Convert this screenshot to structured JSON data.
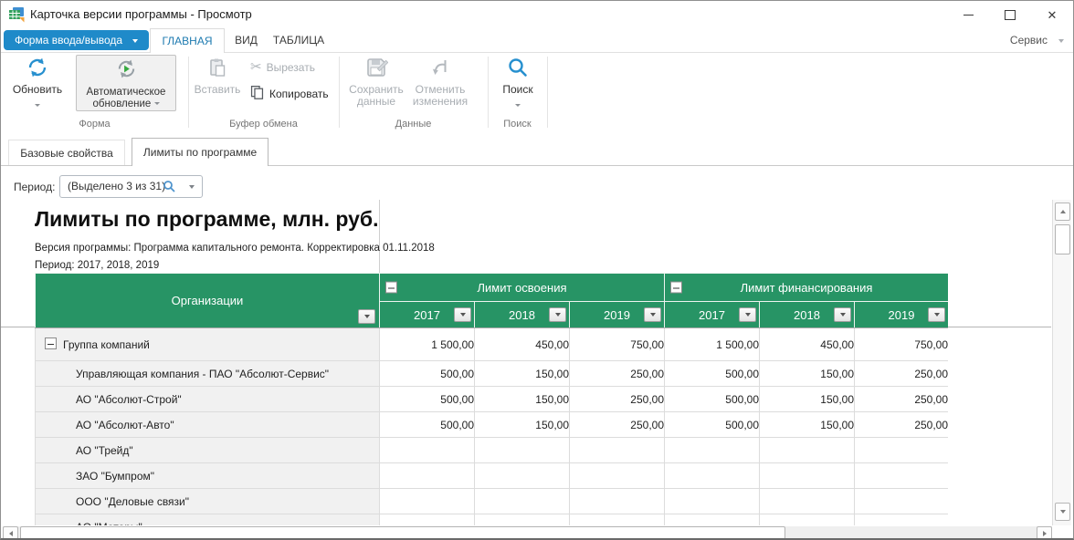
{
  "window": {
    "title": "Карточка версии программы - Просмотр"
  },
  "menu": {
    "form_button": "Форма ввода/вывода",
    "tabs": [
      "ГЛАВНАЯ",
      "ВИД",
      "ТАБЛИЦА"
    ],
    "active_tab": "ГЛАВНАЯ",
    "service": "Сервис"
  },
  "ribbon": {
    "groups": [
      {
        "label": "Форма",
        "items": [
          {
            "label": "Обновить",
            "enabled": true
          },
          {
            "label": "Автоматическое обновление",
            "enabled": true
          }
        ]
      },
      {
        "label": "Буфер обмена",
        "items": [
          {
            "label": "Вставить",
            "enabled": false
          },
          {
            "label": "Вырезать",
            "enabled": false
          },
          {
            "label": "Копировать",
            "enabled": true
          }
        ]
      },
      {
        "label": "Данные",
        "items": [
          {
            "label": "Сохранить данные",
            "enabled": false
          },
          {
            "label": "Отменить изменения",
            "enabled": false
          }
        ]
      },
      {
        "label": "Поиск",
        "items": [
          {
            "label": "Поиск",
            "enabled": true
          }
        ]
      }
    ]
  },
  "page_tabs": [
    "Базовые свойства",
    "Лимиты по программе"
  ],
  "active_page_tab": "Лимиты по программе",
  "period_selector": {
    "label": "Период:",
    "value": "(Выделено 3 из 31)"
  },
  "report": {
    "title": "Лимиты по программе, млн. руб.",
    "version_line": "Версия программы: Программа капитального ремонта. Корректировка 01.11.2018",
    "period_line": "Период: 2017, 2018, 2019"
  },
  "table": {
    "org_header": "Организации",
    "group_headers": [
      "Лимит освоения",
      "Лимит финансирования"
    ],
    "years": [
      "2017",
      "2018",
      "2019"
    ],
    "rows": [
      {
        "name": "Группа компаний",
        "level": 0,
        "expandable": true,
        "values": [
          "1 500,00",
          "450,00",
          "750,00",
          "1 500,00",
          "450,00",
          "750,00"
        ]
      },
      {
        "name": "Управляющая компания - ПАО \"Абсолют-Сервис\"",
        "level": 1,
        "values": [
          "500,00",
          "150,00",
          "250,00",
          "500,00",
          "150,00",
          "250,00"
        ]
      },
      {
        "name": "АО \"Абсолют-Строй\"",
        "level": 1,
        "values": [
          "500,00",
          "150,00",
          "250,00",
          "500,00",
          "150,00",
          "250,00"
        ]
      },
      {
        "name": "АО \"Абсолют-Авто\"",
        "level": 1,
        "values": [
          "500,00",
          "150,00",
          "250,00",
          "500,00",
          "150,00",
          "250,00"
        ]
      },
      {
        "name": "АО \"Трейд\"",
        "level": 1,
        "values": [
          "",
          "",
          "",
          "",
          "",
          ""
        ]
      },
      {
        "name": "ЗАО \"Бумпром\"",
        "level": 1,
        "values": [
          "",
          "",
          "",
          "",
          "",
          ""
        ]
      },
      {
        "name": "ООО \"Деловые связи\"",
        "level": 1,
        "values": [
          "",
          "",
          "",
          "",
          "",
          ""
        ]
      },
      {
        "name": "АО \"Моторы\"",
        "level": 1,
        "values": [
          "",
          "",
          "",
          "",
          "",
          ""
        ]
      }
    ]
  },
  "icons": {
    "app": "spreadsheet-table",
    "refresh": "circular-arrows",
    "auto_refresh": "circular-arrows-with-play",
    "paste": "clipboard",
    "cut": "scissors",
    "copy": "two-documents",
    "save": "diskette-with-pencil",
    "undo": "undo-arrow",
    "search": "magnifier",
    "dropdown": "caret-down",
    "collapse": "minus-box",
    "filter": "caret-down-button"
  },
  "colors": {
    "accent_blue": "#1f8ac9",
    "header_green": "#279465",
    "active_tab_text": "#1d7ab0",
    "disabled_text": "#a8adb2",
    "org_cell_bg": "#f1f1f1"
  }
}
